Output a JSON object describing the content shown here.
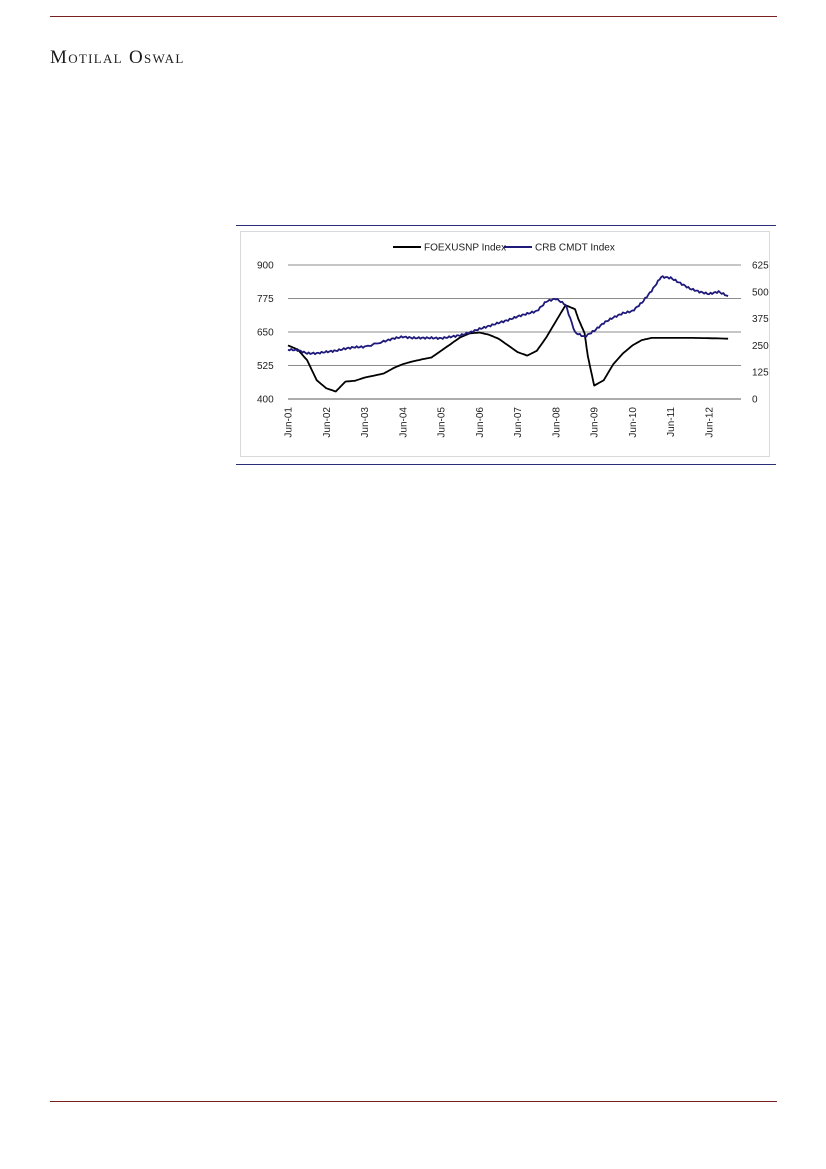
{
  "header": {
    "brand": "Motilal Oswal"
  },
  "chart_data": {
    "type": "line",
    "title": "",
    "xlabel": "",
    "ylabel": "",
    "y_left_ticks": [
      "400",
      "525",
      "650",
      "775",
      "900"
    ],
    "y_left_range": [
      400,
      900
    ],
    "y_right_ticks": [
      "0",
      "125",
      "250",
      "375",
      "500",
      "625"
    ],
    "y_right_range": [
      0,
      625
    ],
    "x_ticks": [
      "Jun-01",
      "Jun-02",
      "Jun-03",
      "Jun-04",
      "Jun-05",
      "Jun-06",
      "Jun-07",
      "Jun-08",
      "Jun-09",
      "Jun-10",
      "Jun-11",
      "Jun-12"
    ],
    "grid": "horizontal",
    "legend_position": "top-center",
    "series": [
      {
        "name": "FOEXUSNP Index",
        "axis": "left",
        "color": "#000000",
        "points": [
          [
            "2001-06",
            600
          ],
          [
            "2001-09",
            585
          ],
          [
            "2001-12",
            545
          ],
          [
            "2002-03",
            470
          ],
          [
            "2002-06",
            440
          ],
          [
            "2002-09",
            428
          ],
          [
            "2002-12",
            465
          ],
          [
            "2003-03",
            468
          ],
          [
            "2003-06",
            480
          ],
          [
            "2003-12",
            495
          ],
          [
            "2004-03",
            515
          ],
          [
            "2004-06",
            530
          ],
          [
            "2004-09",
            540
          ],
          [
            "2004-12",
            548
          ],
          [
            "2005-03",
            555
          ],
          [
            "2005-06",
            580
          ],
          [
            "2005-09",
            605
          ],
          [
            "2005-12",
            630
          ],
          [
            "2006-03",
            645
          ],
          [
            "2006-06",
            648
          ],
          [
            "2006-09",
            640
          ],
          [
            "2006-12",
            625
          ],
          [
            "2007-03",
            600
          ],
          [
            "2007-06",
            575
          ],
          [
            "2007-09",
            562
          ],
          [
            "2007-12",
            580
          ],
          [
            "2008-03",
            630
          ],
          [
            "2008-06",
            690
          ],
          [
            "2008-09",
            750
          ],
          [
            "2008-12",
            735
          ],
          [
            "2009-01",
            700
          ],
          [
            "2009-03",
            645
          ],
          [
            "2009-04",
            560
          ],
          [
            "2009-06",
            450
          ],
          [
            "2009-09",
            470
          ],
          [
            "2009-12",
            530
          ],
          [
            "2010-03",
            570
          ],
          [
            "2010-06",
            600
          ],
          [
            "2010-09",
            620
          ],
          [
            "2010-12",
            628
          ],
          [
            "2011-06",
            628
          ],
          [
            "2011-12",
            628
          ],
          [
            "2012-06",
            627
          ],
          [
            "2012-12",
            625
          ]
        ]
      },
      {
        "name": "CRB CMDT Index",
        "axis": "right",
        "color": "#1f1a7a",
        "points": [
          [
            "2001-06",
            230
          ],
          [
            "2001-09",
            228
          ],
          [
            "2001-12",
            213
          ],
          [
            "2002-03",
            213
          ],
          [
            "2002-06",
            220
          ],
          [
            "2002-09",
            225
          ],
          [
            "2002-12",
            235
          ],
          [
            "2003-03",
            242
          ],
          [
            "2003-06",
            243
          ],
          [
            "2003-12",
            268
          ],
          [
            "2004-03",
            282
          ],
          [
            "2004-06",
            290
          ],
          [
            "2004-09",
            285
          ],
          [
            "2004-12",
            285
          ],
          [
            "2005-03",
            285
          ],
          [
            "2005-06",
            283
          ],
          [
            "2005-09",
            290
          ],
          [
            "2005-12",
            297
          ],
          [
            "2006-03",
            310
          ],
          [
            "2006-06",
            327
          ],
          [
            "2006-09",
            340
          ],
          [
            "2006-12",
            355
          ],
          [
            "2007-03",
            368
          ],
          [
            "2007-06",
            385
          ],
          [
            "2007-09",
            398
          ],
          [
            "2007-12",
            410
          ],
          [
            "2008-03",
            455
          ],
          [
            "2008-06",
            468
          ],
          [
            "2008-09",
            440
          ],
          [
            "2008-12",
            310
          ],
          [
            "2009-03",
            290
          ],
          [
            "2009-06",
            318
          ],
          [
            "2009-09",
            355
          ],
          [
            "2009-12",
            380
          ],
          [
            "2010-03",
            400
          ],
          [
            "2010-06",
            410
          ],
          [
            "2010-09",
            450
          ],
          [
            "2010-12",
            505
          ],
          [
            "2011-03",
            570
          ],
          [
            "2011-06",
            565
          ],
          [
            "2011-09",
            540
          ],
          [
            "2011-12",
            515
          ],
          [
            "2012-03",
            500
          ],
          [
            "2012-06",
            490
          ],
          [
            "2012-09",
            500
          ],
          [
            "2012-12",
            480
          ]
        ]
      }
    ]
  }
}
